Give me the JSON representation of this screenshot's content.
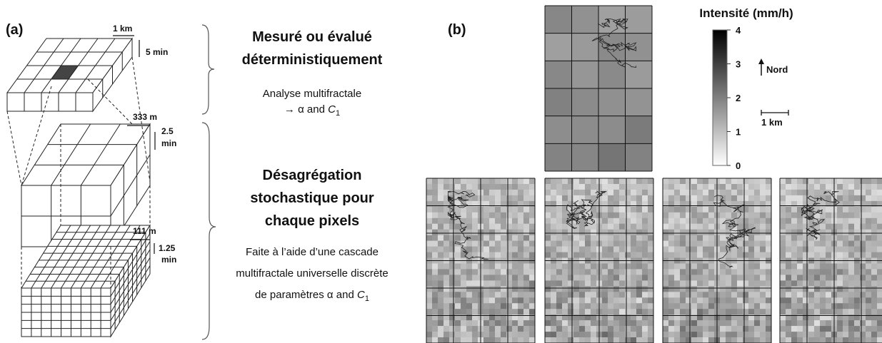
{
  "panel_a": {
    "label": "(a)",
    "top_box": {
      "width": "1 km",
      "time": "5 min"
    },
    "middle_box": {
      "width": "333 m",
      "time": [
        "2.5",
        "min"
      ]
    },
    "bottom_box": {
      "width": "111 m",
      "time": [
        "1.25",
        "min"
      ]
    },
    "step1": {
      "heading": [
        "Mesuré ou évalué",
        "déterministiquement"
      ],
      "line1": "Analyse multifractale",
      "line2": {
        "pre": "→ α and ",
        "var": "C",
        "sub": "1"
      }
    },
    "step2": {
      "heading": [
        "Désagrégation",
        "stochastique pour",
        "chaque pixels"
      ],
      "lines": [
        "Faite à l’aide d’une cascade",
        "multifractale universelle discrète"
      ],
      "last": {
        "pre": "de paramètres α and ",
        "var": "C",
        "sub": "1"
      }
    }
  },
  "panel_b": {
    "label": "(b)",
    "colorbar": {
      "title": "Intensité (mm/h)",
      "lim": [
        0,
        4
      ],
      "ticks": [
        0,
        1,
        2,
        3,
        4
      ]
    },
    "north": "Nord",
    "scale": "1 km"
  }
}
